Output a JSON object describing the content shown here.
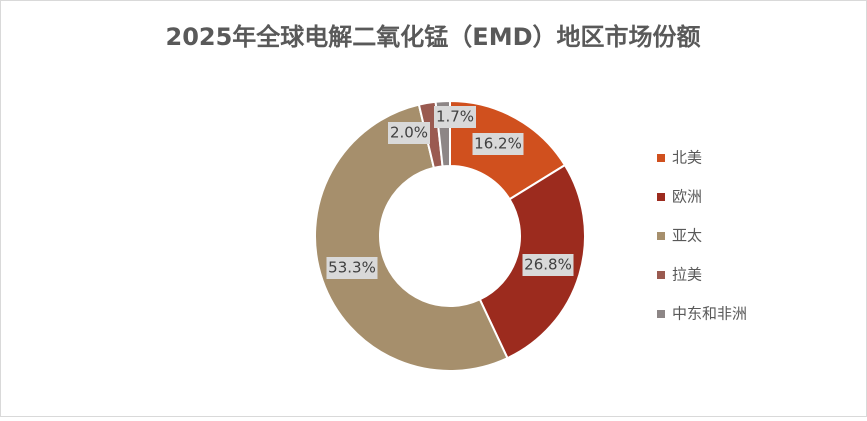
{
  "chart_data": {
    "type": "donut",
    "title": "2025年全球电解二氧化锰（EMD）地区市场份额",
    "categories": [
      "北美",
      "欧洲",
      "亚太",
      "拉美",
      "中东和非洲"
    ],
    "values": [
      16.2,
      26.8,
      53.3,
      2.0,
      1.7
    ],
    "value_labels": [
      "16.2%",
      "26.8%",
      "53.3%",
      "2.0%",
      "1.7%"
    ],
    "colors": [
      "#d0501e",
      "#9c2b1e",
      "#a68f6c",
      "#9a5a50",
      "#8d8686"
    ],
    "legend": "right"
  }
}
